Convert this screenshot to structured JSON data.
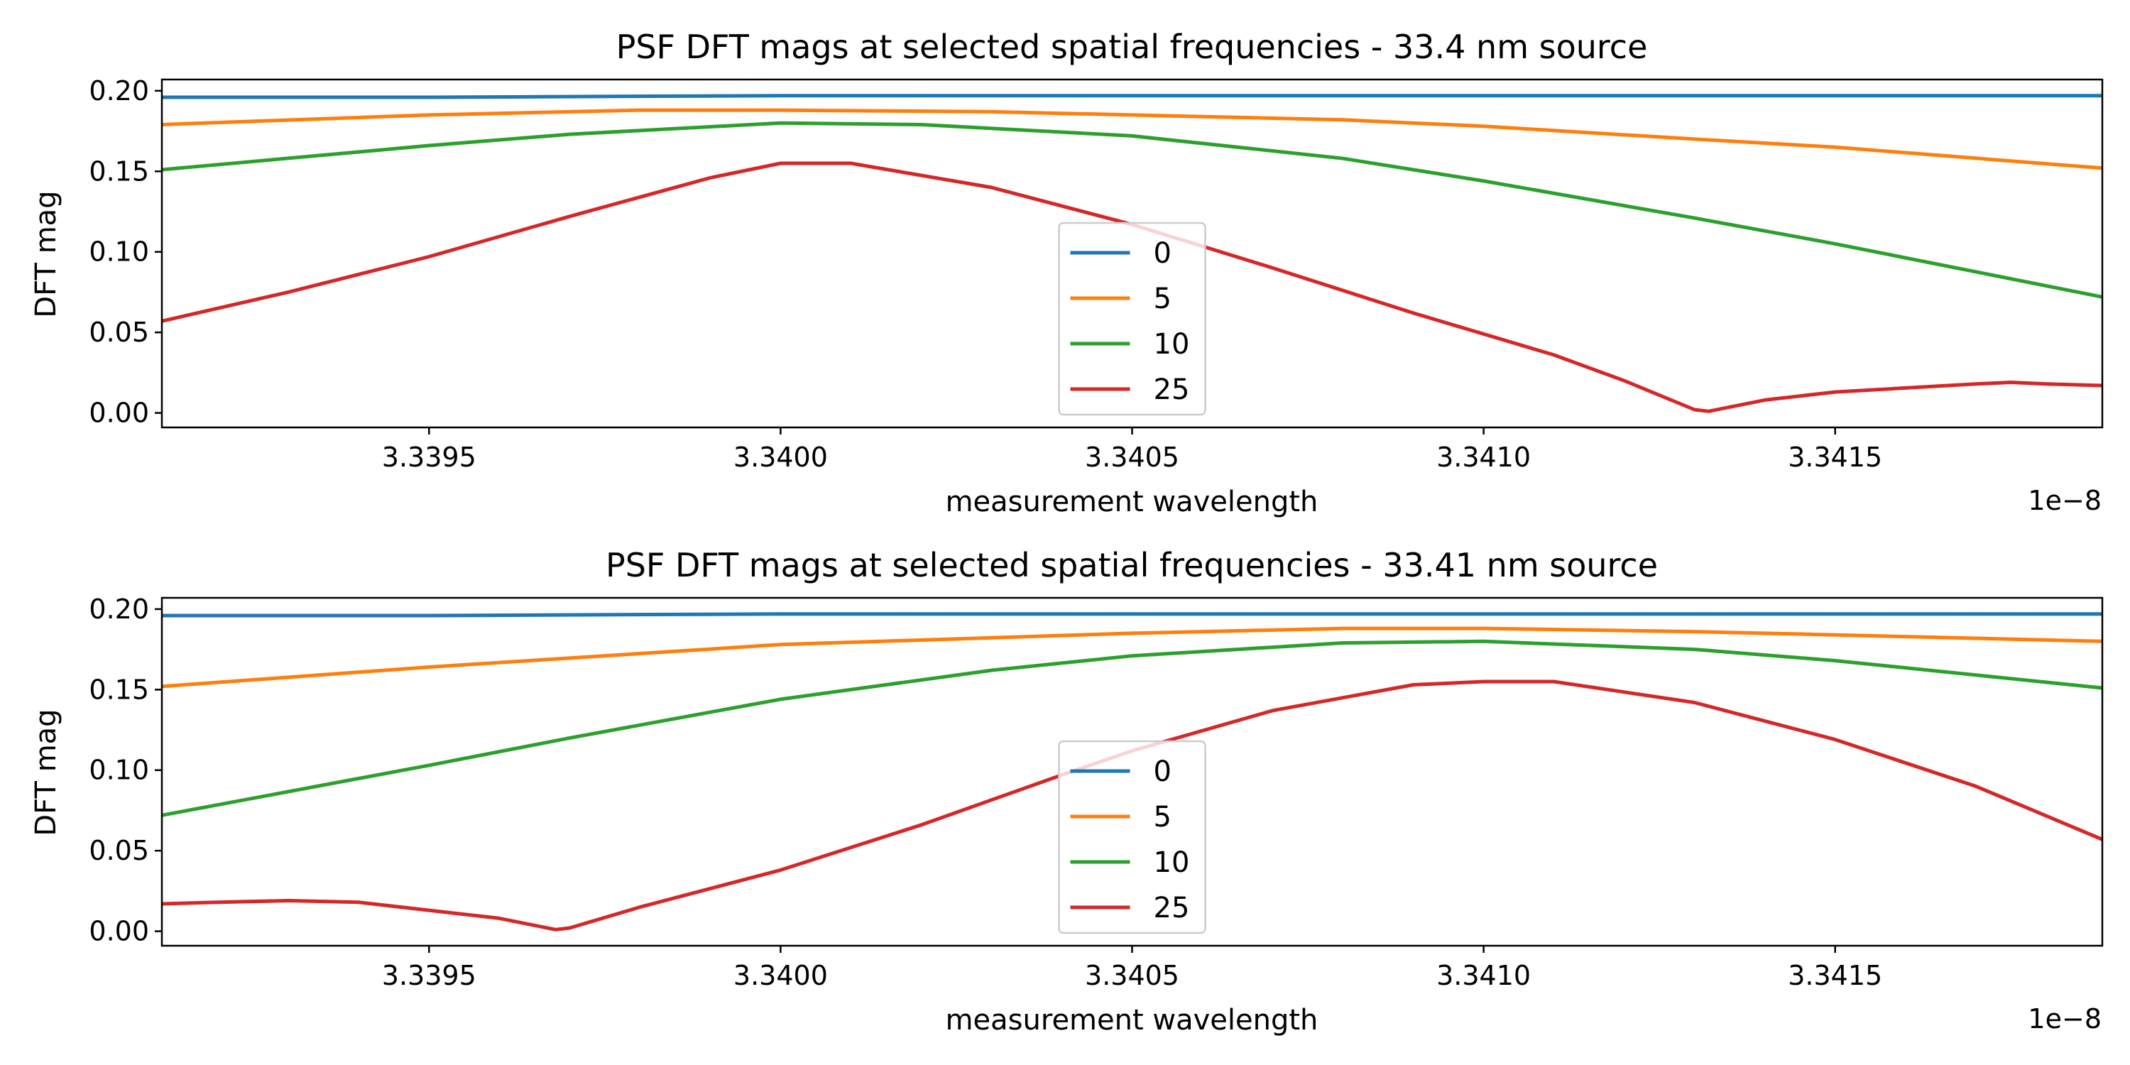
{
  "chart_data": [
    {
      "type": "line",
      "title": "PSF DFT mags at selected spatial frequencies - 33.4 nm source",
      "xlabel": "measurement wavelength",
      "ylabel": "DFT mag",
      "x_offset_label": "1e−8",
      "xlim": [
        3.33912,
        3.34188
      ],
      "ylim": [
        -0.009,
        0.207
      ],
      "x_ticks": [
        3.3395,
        3.34,
        3.3405,
        3.341,
        3.3415
      ],
      "x_tick_labels": [
        "3.3395",
        "3.3400",
        "3.3405",
        "3.3410",
        "3.3415"
      ],
      "y_ticks": [
        0.0,
        0.05,
        0.1,
        0.15,
        0.2
      ],
      "y_tick_labels": [
        "0.00",
        "0.05",
        "0.10",
        "0.15",
        "0.20"
      ],
      "grid": false,
      "legend_position": "lower center",
      "series": [
        {
          "name": "0",
          "color": "#1f77b4",
          "points": [
            [
              3.33912,
              0.196
            ],
            [
              3.3395,
              0.196
            ],
            [
              3.34,
              0.197
            ],
            [
              3.3405,
              0.197
            ],
            [
              3.341,
              0.197
            ],
            [
              3.3415,
              0.197
            ],
            [
              3.34188,
              0.197
            ]
          ]
        },
        {
          "name": "5",
          "color": "#ff7f0e",
          "points": [
            [
              3.33912,
              0.179
            ],
            [
              3.3395,
              0.185
            ],
            [
              3.3398,
              0.188
            ],
            [
              3.34,
              0.188
            ],
            [
              3.3403,
              0.187
            ],
            [
              3.3405,
              0.185
            ],
            [
              3.3408,
              0.182
            ],
            [
              3.341,
              0.178
            ],
            [
              3.3413,
              0.17
            ],
            [
              3.3415,
              0.165
            ],
            [
              3.34188,
              0.152
            ]
          ]
        },
        {
          "name": "10",
          "color": "#2ca02c",
          "points": [
            [
              3.33912,
              0.151
            ],
            [
              3.3395,
              0.166
            ],
            [
              3.3397,
              0.173
            ],
            [
              3.34,
              0.18
            ],
            [
              3.3402,
              0.179
            ],
            [
              3.3405,
              0.172
            ],
            [
              3.3408,
              0.158
            ],
            [
              3.341,
              0.144
            ],
            [
              3.3413,
              0.121
            ],
            [
              3.3415,
              0.105
            ],
            [
              3.34188,
              0.072
            ]
          ]
        },
        {
          "name": "25",
          "color": "#d62728",
          "points": [
            [
              3.33912,
              0.057
            ],
            [
              3.3393,
              0.075
            ],
            [
              3.3395,
              0.097
            ],
            [
              3.3397,
              0.122
            ],
            [
              3.3399,
              0.146
            ],
            [
              3.34,
              0.155
            ],
            [
              3.3401,
              0.155
            ],
            [
              3.3403,
              0.14
            ],
            [
              3.3405,
              0.117
            ],
            [
              3.3407,
              0.09
            ],
            [
              3.3409,
              0.062
            ],
            [
              3.3411,
              0.036
            ],
            [
              3.3412,
              0.02
            ],
            [
              3.3413,
              0.002
            ],
            [
              3.34132,
              0.001
            ],
            [
              3.3414,
              0.008
            ],
            [
              3.3415,
              0.013
            ],
            [
              3.3417,
              0.018
            ],
            [
              3.34175,
              0.019
            ],
            [
              3.3418,
              0.018
            ],
            [
              3.34188,
              0.017
            ]
          ]
        }
      ]
    },
    {
      "type": "line",
      "title": "PSF DFT mags at selected spatial frequencies - 33.41 nm source",
      "xlabel": "measurement wavelength",
      "ylabel": "DFT mag",
      "x_offset_label": "1e−8",
      "xlim": [
        3.33912,
        3.34188
      ],
      "ylim": [
        -0.009,
        0.207
      ],
      "x_ticks": [
        3.3395,
        3.34,
        3.3405,
        3.341,
        3.3415
      ],
      "x_tick_labels": [
        "3.3395",
        "3.3400",
        "3.3405",
        "3.3410",
        "3.3415"
      ],
      "y_ticks": [
        0.0,
        0.05,
        0.1,
        0.15,
        0.2
      ],
      "y_tick_labels": [
        "0.00",
        "0.05",
        "0.10",
        "0.15",
        "0.20"
      ],
      "grid": false,
      "legend_position": "lower center",
      "series": [
        {
          "name": "0",
          "color": "#1f77b4",
          "points": [
            [
              3.33912,
              0.196
            ],
            [
              3.3395,
              0.196
            ],
            [
              3.34,
              0.197
            ],
            [
              3.3405,
              0.197
            ],
            [
              3.341,
              0.197
            ],
            [
              3.3415,
              0.197
            ],
            [
              3.34188,
              0.197
            ]
          ]
        },
        {
          "name": "5",
          "color": "#ff7f0e",
          "points": [
            [
              3.33912,
              0.152
            ],
            [
              3.3395,
              0.164
            ],
            [
              3.34,
              0.178
            ],
            [
              3.3405,
              0.185
            ],
            [
              3.3408,
              0.188
            ],
            [
              3.341,
              0.188
            ],
            [
              3.3413,
              0.186
            ],
            [
              3.3415,
              0.184
            ],
            [
              3.34188,
              0.18
            ]
          ]
        },
        {
          "name": "10",
          "color": "#2ca02c",
          "points": [
            [
              3.33912,
              0.072
            ],
            [
              3.3395,
              0.103
            ],
            [
              3.3397,
              0.12
            ],
            [
              3.34,
              0.144
            ],
            [
              3.3403,
              0.162
            ],
            [
              3.3405,
              0.171
            ],
            [
              3.3408,
              0.179
            ],
            [
              3.341,
              0.18
            ],
            [
              3.3413,
              0.175
            ],
            [
              3.3415,
              0.168
            ],
            [
              3.34188,
              0.151
            ]
          ]
        },
        {
          "name": "25",
          "color": "#d62728",
          "points": [
            [
              3.33912,
              0.017
            ],
            [
              3.3392,
              0.018
            ],
            [
              3.3393,
              0.019
            ],
            [
              3.3394,
              0.018
            ],
            [
              3.3395,
              0.013
            ],
            [
              3.3396,
              0.008
            ],
            [
              3.33968,
              0.001
            ],
            [
              3.3397,
              0.002
            ],
            [
              3.3398,
              0.015
            ],
            [
              3.34,
              0.038
            ],
            [
              3.3402,
              0.066
            ],
            [
              3.3404,
              0.097
            ],
            [
              3.3405,
              0.112
            ],
            [
              3.3407,
              0.137
            ],
            [
              3.3409,
              0.153
            ],
            [
              3.341,
              0.155
            ],
            [
              3.3411,
              0.155
            ],
            [
              3.3413,
              0.142
            ],
            [
              3.3415,
              0.119
            ],
            [
              3.3417,
              0.09
            ],
            [
              3.34188,
              0.057
            ]
          ]
        }
      ]
    }
  ]
}
